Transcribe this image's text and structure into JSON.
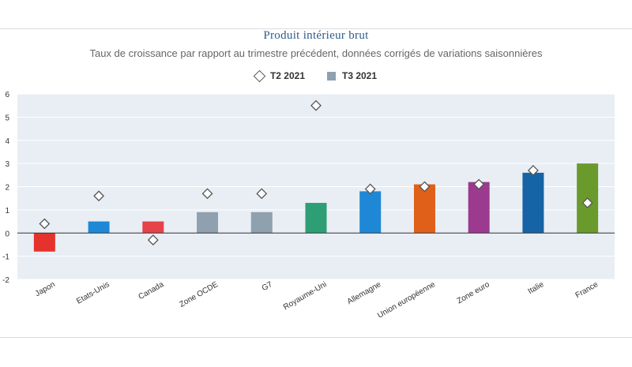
{
  "chart_data": {
    "type": "bar",
    "title": "Produit intérieur brut",
    "subtitle": "Taux de croissance par rapport au trimestre précédent, données corrigés de variations saisonnières",
    "categories": [
      "Japon",
      "Etats-Unis",
      "Canada",
      "Zone OCDE",
      "G7",
      "Royaume-Uni",
      "Allemagne",
      "Union européenne",
      "Zone euro",
      "Italie",
      "France"
    ],
    "series": [
      {
        "name": "T2 2021",
        "kind": "marker",
        "values": [
          0.4,
          1.6,
          -0.3,
          1.7,
          1.7,
          5.5,
          1.9,
          2.0,
          2.1,
          2.7,
          1.3
        ]
      },
      {
        "name": "T3 2021",
        "kind": "bar",
        "values": [
          -0.8,
          0.5,
          0.5,
          0.9,
          0.9,
          1.3,
          1.8,
          2.1,
          2.2,
          2.6,
          3.0
        ]
      }
    ],
    "bar_colors": [
      "#e5322d",
      "#1e88d6",
      "#e5424a",
      "#8fa0ae",
      "#8fa0ae",
      "#2e9e74",
      "#1e88d6",
      "#e0601a",
      "#9b3a8e",
      "#1664a6",
      "#6a9a2c"
    ],
    "ylim": [
      -2,
      6
    ],
    "yticks": [
      -2,
      -1,
      0,
      1,
      2,
      3,
      4,
      5,
      6
    ],
    "legend_position": "top-center",
    "grid": false,
    "plot_background": "#e8eef4"
  }
}
